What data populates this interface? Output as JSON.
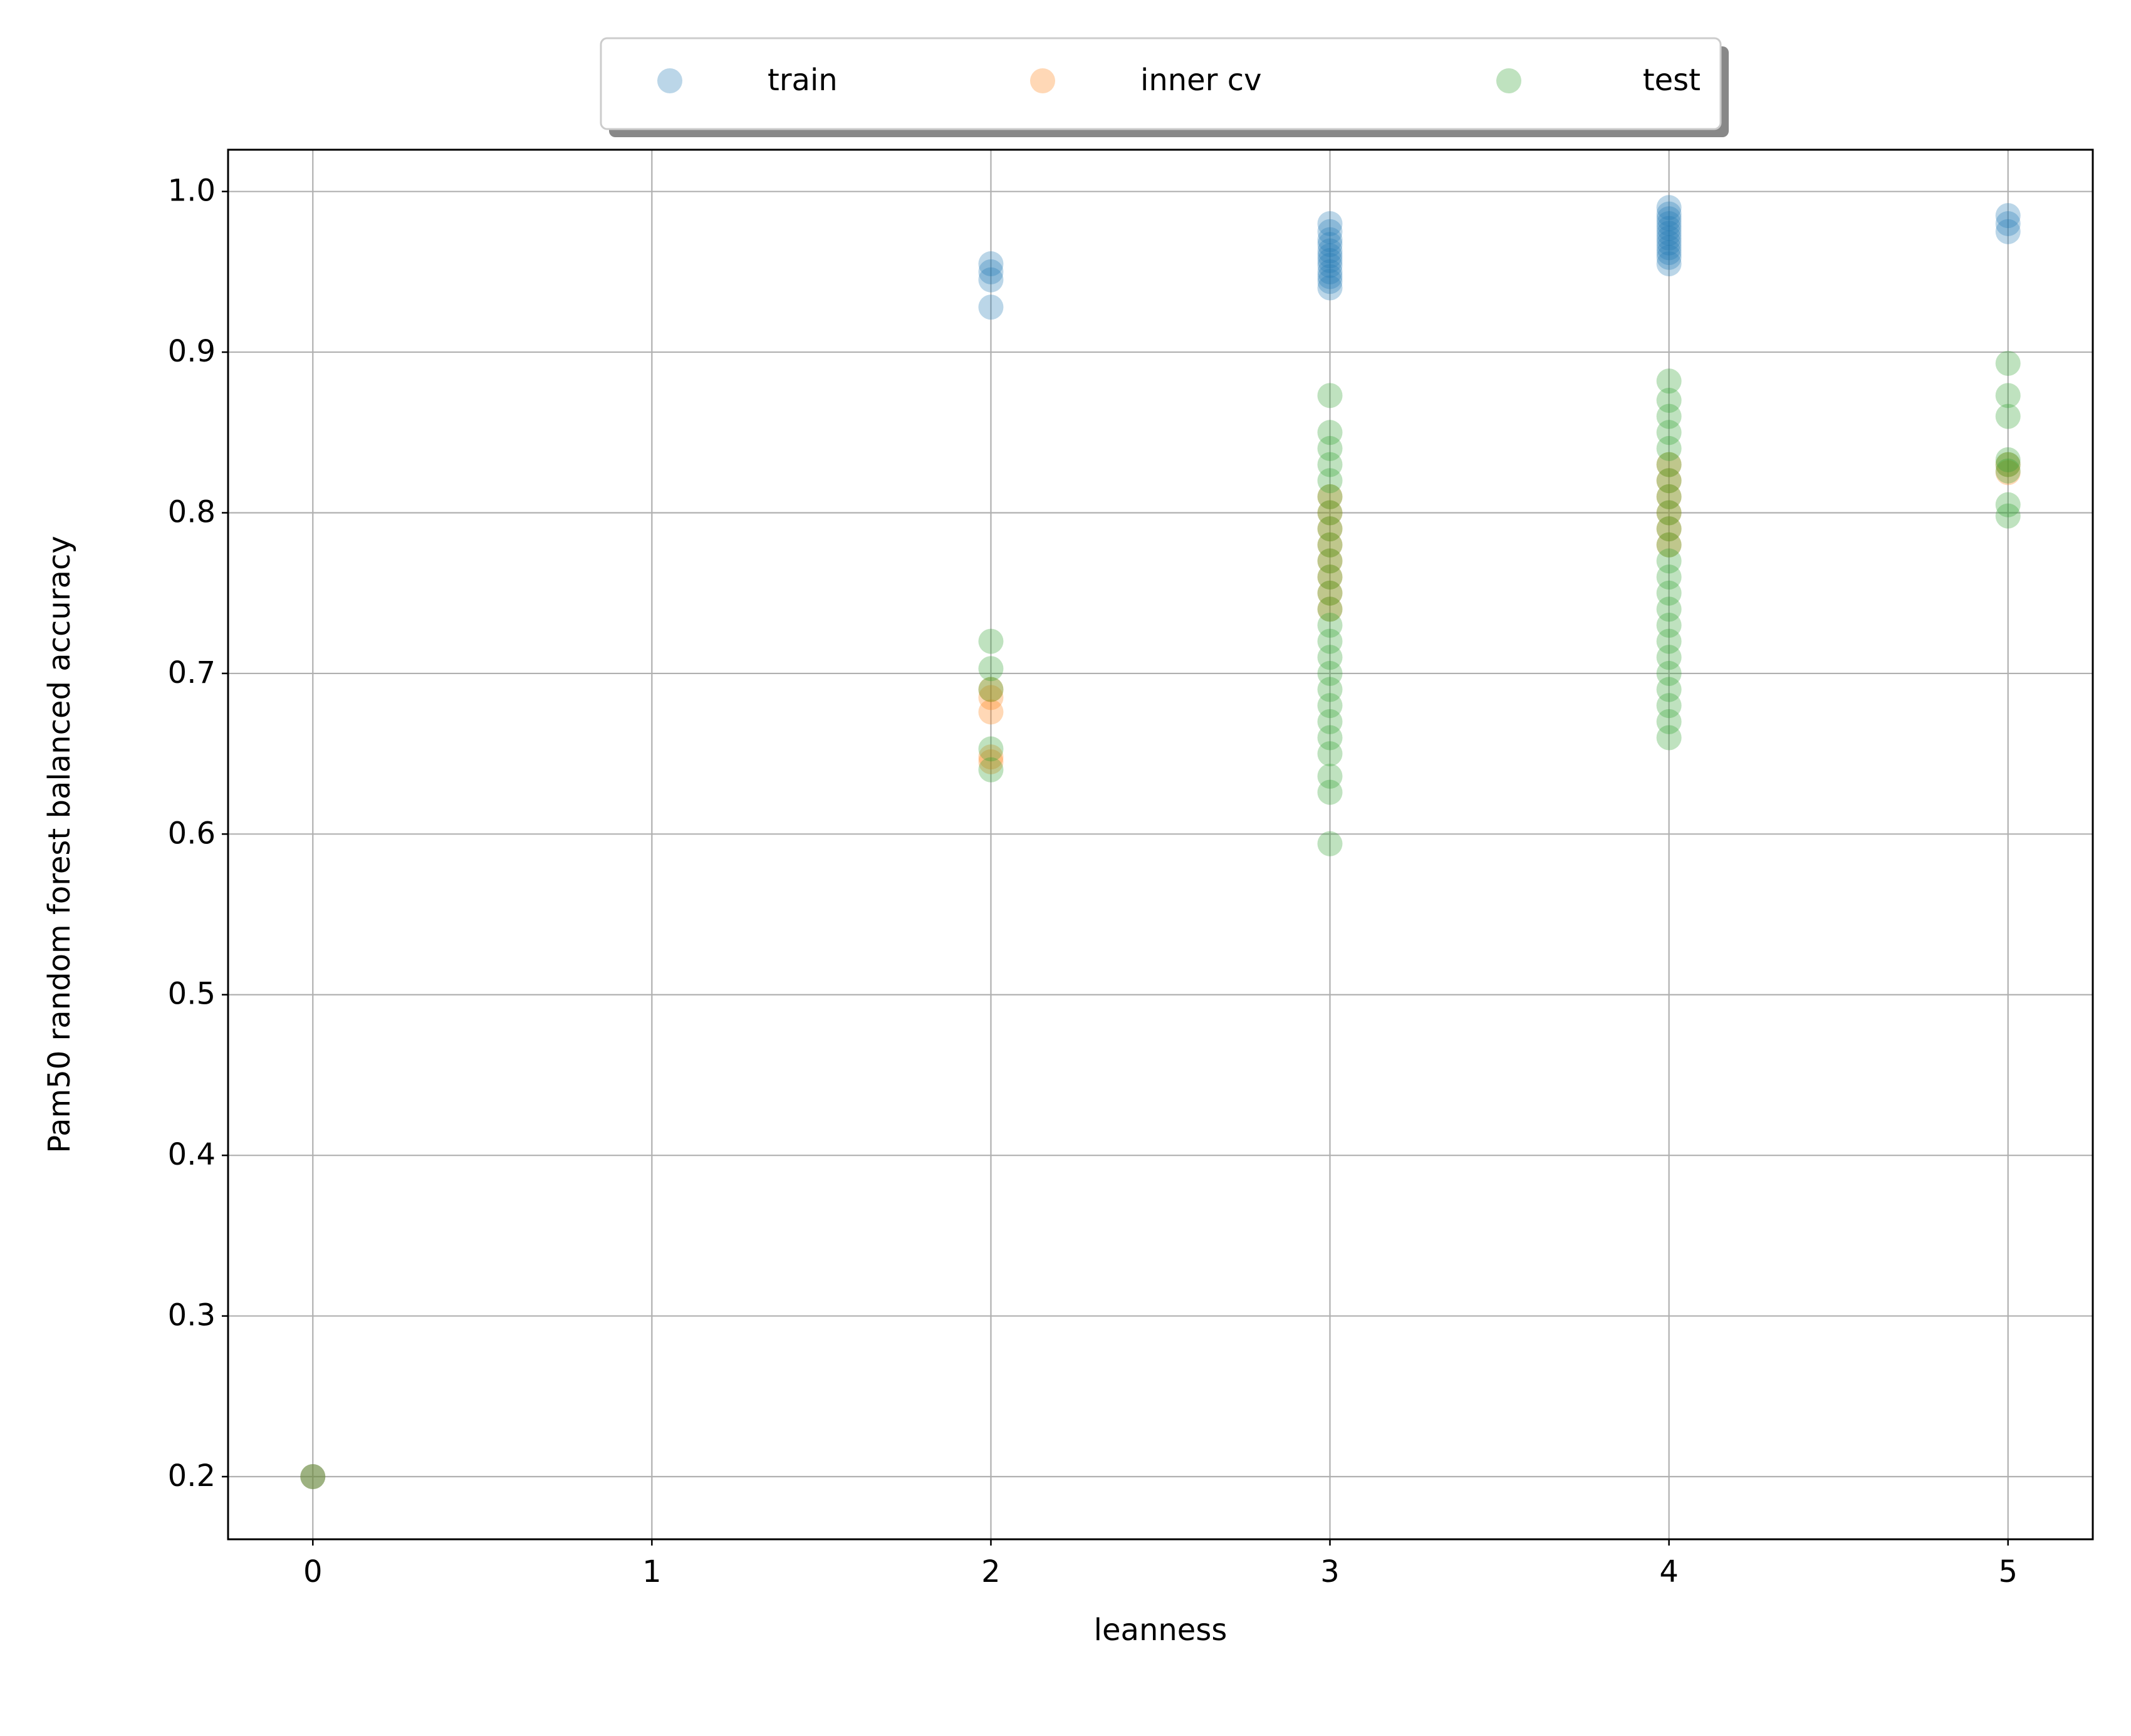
{
  "chart_data": {
    "type": "scatter",
    "xlabel": "leanness",
    "ylabel": "Pam50 random forest balanced accuracy",
    "xlim": [
      -0.25,
      5.25
    ],
    "ylim": [
      0.161,
      1.026
    ],
    "xticks": [
      0,
      1,
      2,
      3,
      4,
      5
    ],
    "yticks": [
      0.2,
      0.3,
      0.4,
      0.5,
      0.6,
      0.7,
      0.8,
      0.9,
      {
        "value": 1,
        "label": "1.0"
      }
    ],
    "grid": true,
    "legend": "top center",
    "alpha": 0.3,
    "series": [
      {
        "name": "train",
        "color": "#1f77b4",
        "x": [
          0,
          2,
          2,
          2,
          2,
          3,
          3,
          3,
          3,
          3,
          3,
          3,
          3,
          3,
          3,
          3,
          3,
          4,
          4,
          4,
          4,
          4,
          4,
          4,
          4,
          4,
          4,
          4,
          4,
          5,
          5,
          5
        ],
        "values": [
          0.2,
          0.955,
          0.95,
          0.945,
          0.928,
          0.98,
          0.975,
          0.97,
          0.967,
          0.963,
          0.96,
          0.957,
          0.954,
          0.95,
          0.947,
          0.944,
          0.94,
          0.99,
          0.986,
          0.983,
          0.98,
          0.977,
          0.974,
          0.971,
          0.968,
          0.965,
          0.962,
          0.959,
          0.955,
          0.985,
          0.98,
          0.975
        ]
      },
      {
        "name": "inner cv",
        "color": "#ff7f0e",
        "x": [
          0,
          2,
          2,
          2,
          2,
          2,
          3,
          3,
          3,
          3,
          3,
          3,
          3,
          3,
          4,
          4,
          4,
          4,
          4,
          4,
          5,
          5
        ],
        "values": [
          0.2,
          0.69,
          0.685,
          0.676,
          0.648,
          0.645,
          0.81,
          0.8,
          0.79,
          0.78,
          0.77,
          0.76,
          0.75,
          0.74,
          0.83,
          0.82,
          0.81,
          0.8,
          0.79,
          0.78,
          0.83,
          0.825
        ]
      },
      {
        "name": "test",
        "color": "#2ca02c",
        "x": [
          0,
          2,
          2,
          2,
          2,
          2,
          3,
          3,
          3,
          3,
          3,
          3,
          3,
          3,
          3,
          3,
          3,
          3,
          3,
          3,
          3,
          3,
          3,
          3,
          3,
          3,
          3,
          3,
          3,
          3,
          3,
          4,
          4,
          4,
          4,
          4,
          4,
          4,
          4,
          4,
          4,
          4,
          4,
          4,
          4,
          4,
          4,
          4,
          4,
          4,
          4,
          4,
          4,
          4,
          5,
          5,
          5,
          5,
          5,
          5,
          5,
          5
        ],
        "values": [
          0.2,
          0.72,
          0.703,
          0.69,
          0.653,
          0.64,
          0.873,
          0.85,
          0.84,
          0.83,
          0.82,
          0.81,
          0.8,
          0.79,
          0.78,
          0.77,
          0.76,
          0.75,
          0.74,
          0.73,
          0.72,
          0.71,
          0.7,
          0.69,
          0.68,
          0.67,
          0.66,
          0.65,
          0.636,
          0.626,
          0.594,
          0.882,
          0.87,
          0.86,
          0.85,
          0.84,
          0.83,
          0.82,
          0.81,
          0.8,
          0.79,
          0.78,
          0.77,
          0.76,
          0.75,
          0.74,
          0.73,
          0.72,
          0.71,
          0.7,
          0.69,
          0.68,
          0.67,
          0.66,
          0.893,
          0.873,
          0.86,
          0.833,
          0.83,
          0.826,
          0.805,
          0.798
        ]
      }
    ]
  }
}
